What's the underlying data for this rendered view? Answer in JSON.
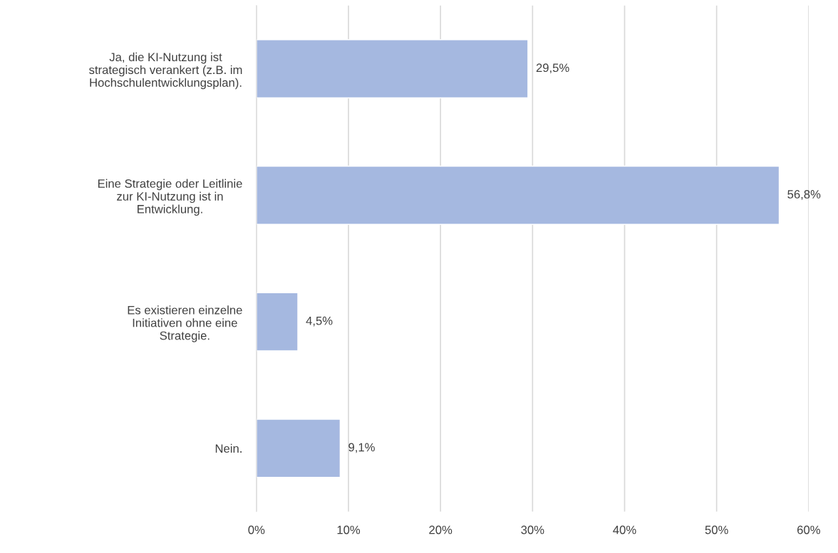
{
  "chart_data": {
    "type": "bar",
    "orientation": "horizontal",
    "categories": [
      "Ja, die KI-Nutzung ist\nstrategisch verankert (z.B. im\nHochschulentwicklungsplan).",
      "Eine Strategie oder Leitlinie\nzur KI-Nutzung ist in\nEntwicklung.",
      "Es existieren einzelne\nInitiativen ohne eine\nStrategie.",
      "Nein."
    ],
    "values": [
      29.5,
      56.8,
      4.5,
      9.1
    ],
    "value_labels": [
      "29,5%",
      "56,8%",
      "4,5%",
      "9,1%"
    ],
    "color": "#a5b8e0",
    "xlim": [
      0,
      60
    ],
    "xticks": [
      {
        "value": 0,
        "label": "0%"
      },
      {
        "value": 10,
        "label": "10%"
      },
      {
        "value": 20,
        "label": "20%"
      },
      {
        "value": 30,
        "label": "30%"
      },
      {
        "value": 40,
        "label": "40%"
      },
      {
        "value": 50,
        "label": "50%"
      },
      {
        "value": 60,
        "label": "60%"
      }
    ],
    "grid": "x",
    "legend": false
  }
}
